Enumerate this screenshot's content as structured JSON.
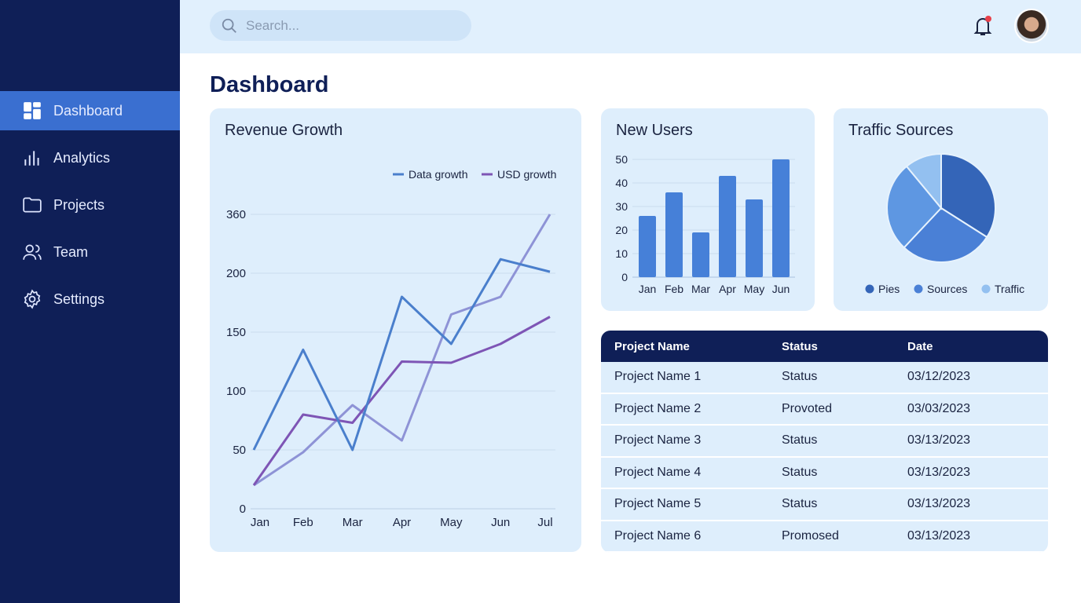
{
  "sidebar": {
    "items": [
      {
        "label": "Dashboard",
        "icon": "dashboard-icon",
        "active": true
      },
      {
        "label": "Analytics",
        "icon": "bar-chart-icon"
      },
      {
        "label": "Projects",
        "icon": "folder-icon"
      },
      {
        "label": "Team",
        "icon": "users-icon"
      },
      {
        "label": "Settings",
        "icon": "gear-icon"
      }
    ]
  },
  "topbar": {
    "search_placeholder": "Search...",
    "notification_dot_color": "#e8404a"
  },
  "page_title": "Dashboard",
  "colors": {
    "sidebar": "#0f1f57",
    "accent": "#3a6fd0",
    "card": "#deeefc"
  },
  "chart_data": [
    {
      "type": "line",
      "title": "Revenue Growth",
      "categories": [
        "Jan",
        "Feb",
        "Mar",
        "Apr",
        "May",
        "Jun",
        "Jul"
      ],
      "yticks": [
        0,
        50,
        100,
        150,
        200,
        360
      ],
      "grid": true,
      "legend": "top-right",
      "series": [
        {
          "name": "Data growth",
          "color": "#4a7fcc",
          "values": [
            50,
            135,
            50,
            180,
            140,
            238,
            204
          ]
        },
        {
          "name": "USD growth",
          "color": "#7e55b5",
          "values": [
            20,
            80,
            73,
            125,
            124,
            140,
            163
          ]
        },
        {
          "color": "#8e93d6",
          "values": [
            20,
            48,
            88,
            58,
            165,
            180,
            360
          ]
        }
      ]
    },
    {
      "type": "bar",
      "title": "New Users",
      "categories": [
        "Jan",
        "Feb",
        "Mar",
        "Apr",
        "May",
        "Jun"
      ],
      "values": [
        26,
        36,
        19,
        43,
        33,
        50
      ],
      "yticks": [
        0,
        10,
        20,
        30,
        40,
        50
      ],
      "ylim": [
        0,
        50
      ],
      "grid": true,
      "color": "#4680d8"
    },
    {
      "type": "pie",
      "title": "Traffic Sources",
      "legend": "bottom",
      "slices": [
        {
          "name": "Pies",
          "value": 34,
          "color": "#3465b8"
        },
        {
          "name": "Sources",
          "value": 28,
          "color": "#4a80d6"
        },
        {
          "value": 27,
          "color": "#5e97e2"
        },
        {
          "name": "Traffic",
          "value": 11,
          "color": "#93c0f0"
        }
      ]
    }
  ],
  "table": {
    "headers": [
      "Project Name",
      "Status",
      "Date"
    ],
    "rows": [
      [
        "Project Name 1",
        "Status",
        "03/12/2023"
      ],
      [
        "Project Name 2",
        "Provoted",
        "03/03/2023"
      ],
      [
        "Project Name 3",
        "Status",
        "03/13/2023"
      ],
      [
        "Project Name 4",
        "Status",
        "03/13/2023"
      ],
      [
        "Project Name 5",
        "Status",
        "03/13/2023"
      ],
      [
        "Project Name 6",
        "Promosed",
        "03/13/2023"
      ]
    ]
  }
}
